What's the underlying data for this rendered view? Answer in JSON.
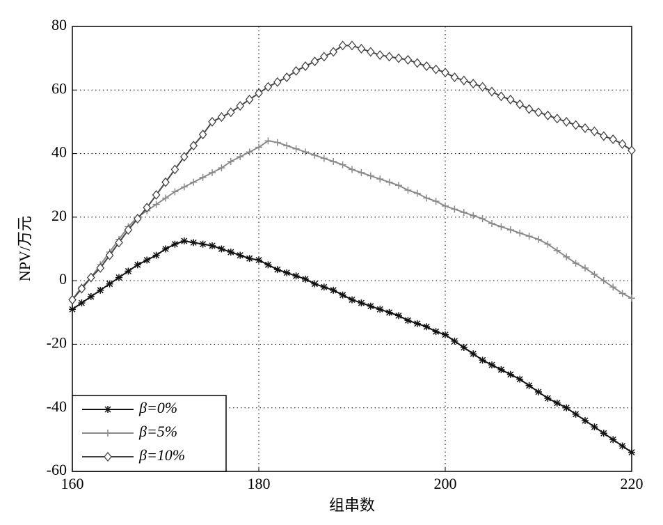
{
  "chart_data": {
    "type": "line",
    "x_label": "组串数",
    "y_label": "NPV/万元",
    "x": [
      160,
      161,
      162,
      163,
      164,
      165,
      166,
      167,
      168,
      169,
      170,
      171,
      172,
      173,
      174,
      175,
      176,
      177,
      178,
      179,
      180,
      181,
      182,
      183,
      184,
      185,
      186,
      187,
      188,
      189,
      190,
      191,
      192,
      193,
      194,
      195,
      196,
      197,
      198,
      199,
      200,
      201,
      202,
      203,
      204,
      205,
      206,
      207,
      208,
      209,
      210,
      211,
      212,
      213,
      214,
      215,
      216,
      217,
      218,
      219,
      220
    ],
    "xlim": [
      160,
      220
    ],
    "xticks": [
      160,
      180,
      200,
      220
    ],
    "ylim": [
      -60,
      80
    ],
    "yticks": [
      -60,
      -40,
      -20,
      0,
      20,
      40,
      60,
      80
    ],
    "grid": true,
    "legend": "lower left",
    "series": [
      {
        "name": "β=0%",
        "color": "#111111",
        "marker": "star",
        "values": [
          -9,
          -7,
          -5,
          -3,
          -1,
          1,
          3,
          5,
          6.5,
          8,
          10,
          11.5,
          12.5,
          12,
          11.5,
          11,
          10,
          9,
          8,
          7,
          6.5,
          5,
          3.5,
          2.5,
          1.5,
          0.5,
          -1,
          -2,
          -3,
          -4.5,
          -6,
          -7,
          -8,
          -9,
          -10,
          -11,
          -12.5,
          -13.5,
          -14.5,
          -16,
          -17,
          -19,
          -21,
          -23,
          -25,
          -26.5,
          -28,
          -29.5,
          -31,
          -33,
          -35,
          -37,
          -38.5,
          -40,
          -42,
          -44,
          -46,
          -48,
          -50,
          -52,
          -54
        ]
      },
      {
        "name": "β=5%",
        "color": "#8a8a8a",
        "marker": "plus",
        "values": [
          -6,
          -2,
          1,
          5,
          9,
          13,
          17,
          20,
          22,
          24,
          26,
          28,
          29.5,
          31,
          32.5,
          34,
          35.5,
          37.5,
          39,
          40.5,
          42,
          44,
          43.5,
          42.5,
          41.5,
          40.5,
          39.5,
          38.5,
          37.5,
          36.5,
          35,
          34,
          33,
          32,
          31,
          30,
          28.5,
          27.5,
          26,
          25,
          23.5,
          22.5,
          21.5,
          20.5,
          19.5,
          18,
          17,
          16,
          15,
          14,
          13,
          11.5,
          9.5,
          7.5,
          5.5,
          4,
          2,
          0,
          -2,
          -4,
          -5.5
        ]
      },
      {
        "name": "β=10%",
        "color": "#444444",
        "marker": "diamond",
        "values": [
          -6,
          -2.5,
          1,
          4,
          8,
          12,
          16,
          19.5,
          23,
          27,
          31,
          35,
          39,
          42.5,
          46,
          50,
          51.5,
          53,
          55,
          57,
          59,
          61,
          62.5,
          64,
          66,
          67.5,
          69,
          70.5,
          72,
          74,
          74,
          73,
          72,
          71,
          70.5,
          70,
          69.5,
          68.5,
          67.5,
          66.5,
          65.5,
          64,
          63,
          62,
          61,
          59.5,
          58,
          57,
          55.5,
          54,
          53,
          52,
          51,
          50,
          49,
          48,
          47,
          45.5,
          44.5,
          43,
          41
        ]
      }
    ]
  }
}
